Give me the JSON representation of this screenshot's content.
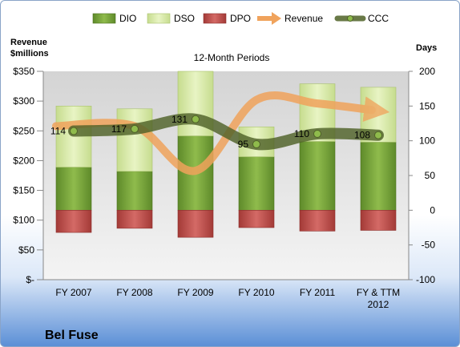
{
  "chart_data": {
    "type": "bar",
    "title": "12-Month Periods",
    "company": "Bel Fuse",
    "y_left_label": [
      "Revenue",
      "$millions"
    ],
    "y_right_label": "Days",
    "y_left_ticks": [
      "$-",
      "$50",
      "$100",
      "$150",
      "$200",
      "$250",
      "$300",
      "$350"
    ],
    "y_left_range": [
      0,
      350
    ],
    "y_right_ticks": [
      "-100",
      "-50",
      "0",
      "50",
      "100",
      "150",
      "200"
    ],
    "y_right_range": [
      -100,
      200
    ],
    "categories": [
      "FY 2007",
      "FY 2008",
      "FY 2009",
      "FY 2010",
      "FY 2011",
      "FY & TTM 2012"
    ],
    "legend": [
      "DIO",
      "DSO",
      "DPO",
      "Revenue",
      "CCC"
    ],
    "series": [
      {
        "name": "DIO",
        "axis": "right",
        "values": [
          62,
          56,
          107,
          77,
          99,
          98
        ]
      },
      {
        "name": "DSO",
        "axis": "right",
        "values": [
          88,
          90,
          93,
          43,
          83,
          79
        ]
      },
      {
        "name": "DPO",
        "axis": "right",
        "values": [
          -32,
          -26,
          -39,
          -25,
          -30,
          -29
        ]
      },
      {
        "name": "Revenue",
        "axis": "left",
        "values": [
          258,
          258,
          183,
          302,
          296,
          285
        ]
      },
      {
        "name": "CCC",
        "axis": "right",
        "values": [
          114,
          117,
          131,
          95,
          110,
          108
        ]
      }
    ],
    "ccc_labels": [
      "114",
      "117",
      "131",
      "95",
      "110",
      "108"
    ],
    "colors": {
      "DIO": "#7aa23c",
      "DSO": "#d6e8a6",
      "DPO": "#c0504d",
      "Revenue": "#f0a35c",
      "CCC": "#4f6228"
    },
    "grid": false,
    "legend_position": "top"
  }
}
